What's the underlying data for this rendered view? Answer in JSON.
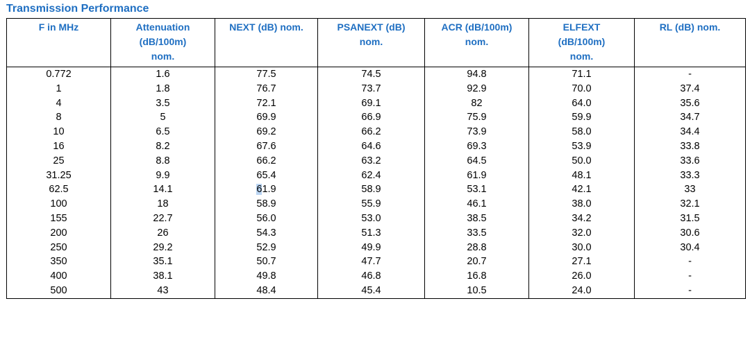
{
  "title": "Transmission Performance",
  "table": {
    "headers": [
      [
        "F in MHz"
      ],
      [
        "Attenuation",
        "(dB/100m)",
        "nom."
      ],
      [
        "NEXT (dB) nom."
      ],
      [
        "PSANEXT (dB)",
        "nom."
      ],
      [
        "ACR (dB/100m)",
        "nom."
      ],
      [
        "ELFEXT",
        "(dB/100m)",
        "nom."
      ],
      [
        "RL (dB) nom."
      ]
    ],
    "rows": [
      [
        "0.772",
        "1.6",
        "77.5",
        "74.5",
        "94.8",
        "71.1",
        "-"
      ],
      [
        "1",
        "1.8",
        "76.7",
        "73.7",
        "92.9",
        "70.0",
        "37.4"
      ],
      [
        "4",
        "3.5",
        "72.1",
        "69.1",
        "82",
        "64.0",
        "35.6"
      ],
      [
        "8",
        "5",
        "69.9",
        "66.9",
        "75.9",
        "59.9",
        "34.7"
      ],
      [
        "10",
        "6.5",
        "69.2",
        "66.2",
        "73.9",
        "58.0",
        "34.4"
      ],
      [
        "16",
        "8.2",
        "67.6",
        "64.6",
        "69.3",
        "53.9",
        "33.8"
      ],
      [
        "25",
        "8.8",
        "66.2",
        "63.2",
        "64.5",
        "50.0",
        "33.6"
      ],
      [
        "31.25",
        "9.9",
        "65.4",
        "62.4",
        "61.9",
        "48.1",
        "33.3"
      ],
      [
        "62.5",
        "14.1",
        "61.9",
        "58.9",
        "53.1",
        "42.1",
        "33"
      ],
      [
        "100",
        "18",
        "58.9",
        "55.9",
        "46.1",
        "38.0",
        "32.1"
      ],
      [
        "155",
        "22.7",
        "56.0",
        "53.0",
        "38.5",
        "34.2",
        "31.5"
      ],
      [
        "200",
        "26",
        "54.3",
        "51.3",
        "33.5",
        "32.0",
        "30.6"
      ],
      [
        "250",
        "29.2",
        "52.9",
        "49.9",
        "28.8",
        "30.0",
        "30.4"
      ],
      [
        "350",
        "35.1",
        "50.7",
        "47.7",
        "20.7",
        "27.1",
        "-"
      ],
      [
        "400",
        "38.1",
        "49.8",
        "46.8",
        "16.8",
        "26.0",
        "-"
      ],
      [
        "500",
        "43",
        "48.4",
        "45.4",
        "10.5",
        "24.0",
        "-"
      ]
    ]
  },
  "colors": {
    "heading": "#1f6fc2",
    "text_cursor_highlight": "#b9d4f2"
  }
}
